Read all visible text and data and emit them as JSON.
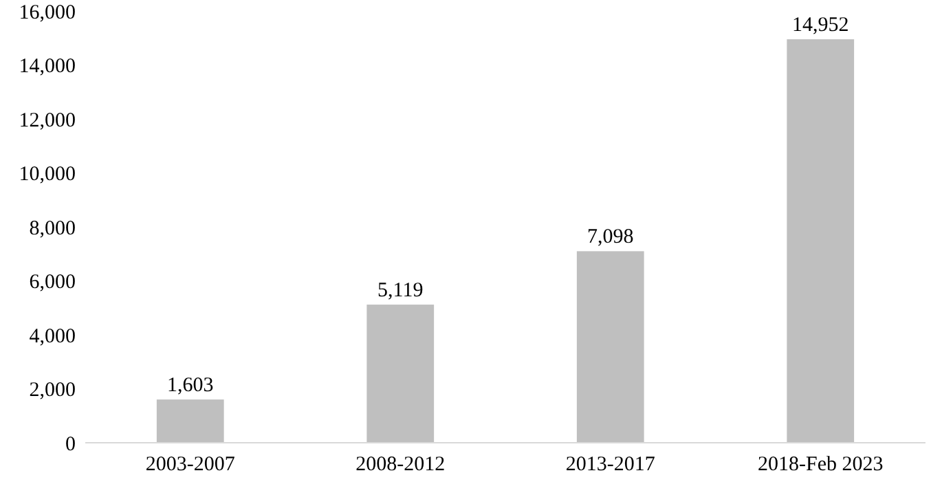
{
  "chart_data": {
    "type": "bar",
    "categories": [
      "2003-2007",
      "2008-2012",
      "2013-2017",
      "2018-Feb 2023"
    ],
    "values": [
      1603,
      5119,
      7098,
      14952
    ],
    "color": "#bfbfbf",
    "data_labels": true,
    "value_labels": [
      "1,603",
      "5,119",
      "7,098",
      "14,952"
    ],
    "ylim": [
      0,
      16000
    ],
    "yticks": [
      {
        "value": 0,
        "label": "0"
      },
      {
        "value": 2000,
        "label": "2,000"
      },
      {
        "value": 4000,
        "label": "4,000"
      },
      {
        "value": 6000,
        "label": "6,000"
      },
      {
        "value": 8000,
        "label": "8,000"
      },
      {
        "value": 10000,
        "label": "10,000"
      },
      {
        "value": 12000,
        "label": "12,000"
      },
      {
        "value": 14000,
        "label": "14,000"
      },
      {
        "value": 16000,
        "label": "16,000"
      }
    ],
    "grid": false
  }
}
